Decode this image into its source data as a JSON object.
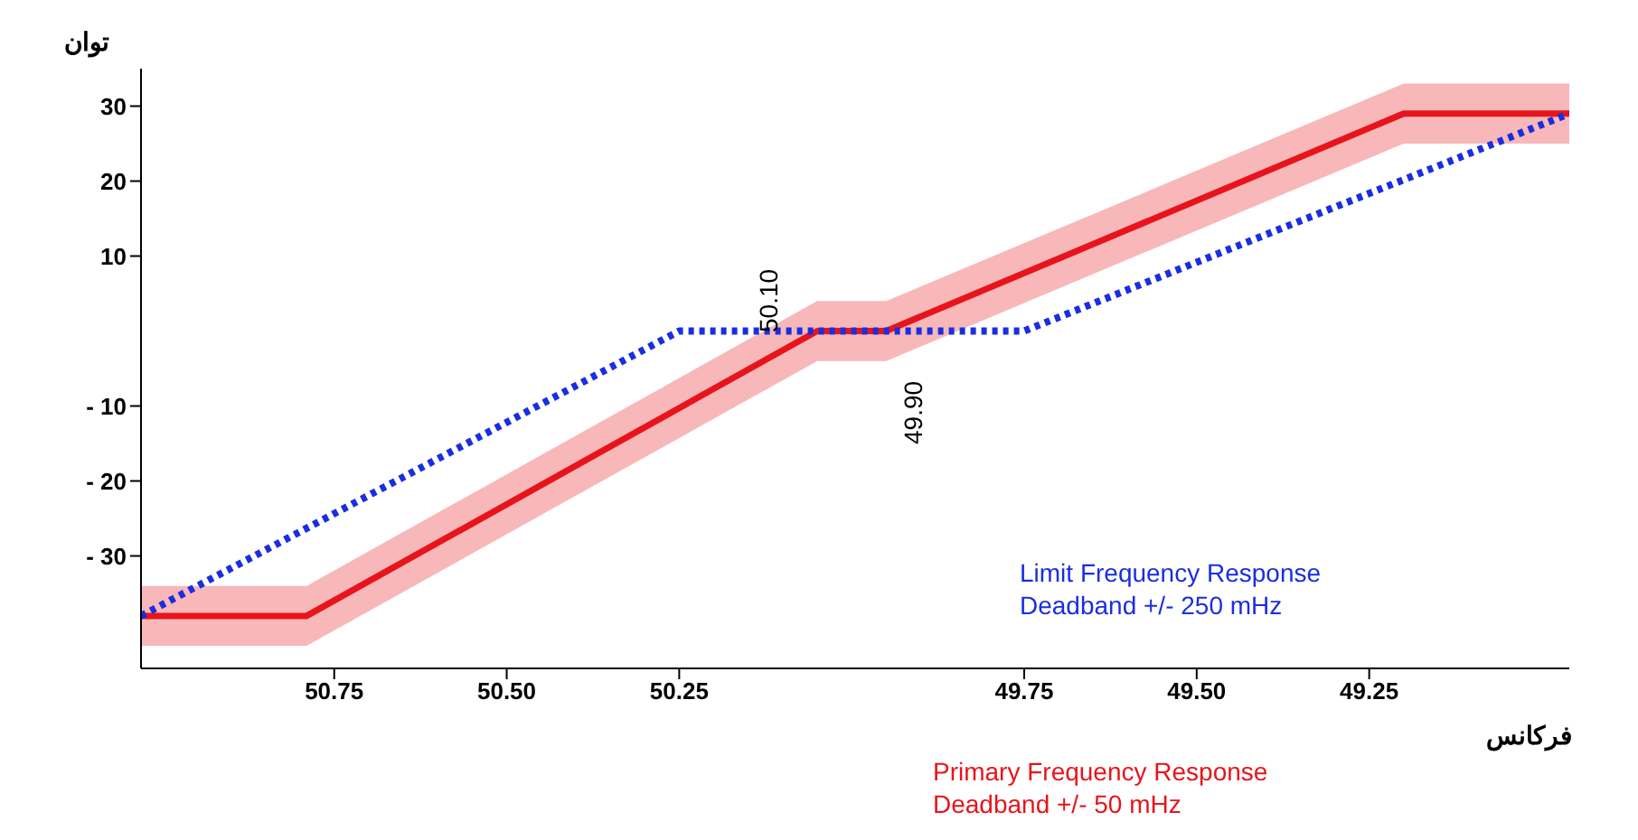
{
  "chart_data": {
    "type": "line",
    "xlabel": "فرکانس",
    "ylabel": "توان",
    "xlim": [
      51.03,
      48.96
    ],
    "xticks": [
      50.75,
      {
        "value": 50.5,
        "label": "50.50"
      },
      50.25,
      49.75,
      {
        "value": 49.5,
        "label": "49.50"
      },
      49.25
    ],
    "ylim": [
      -45,
      35
    ],
    "yticks": [
      {
        "value": -30,
        "label": "- 30"
      },
      {
        "value": -20,
        "label": "- 20"
      },
      {
        "value": -10,
        "label": "- 10"
      },
      10,
      20,
      30
    ],
    "series": [
      {
        "color": "#e8141b",
        "line_style": "solid",
        "x": [
          51.03,
          50.79,
          50.05,
          49.95,
          49.2,
          48.96
        ],
        "values": [
          -38,
          -38,
          0,
          0,
          29,
          29
        ],
        "lower": [
          -42,
          -42,
          -4,
          -4,
          25,
          25
        ],
        "upper": [
          -34,
          -34,
          4,
          4,
          33,
          33
        ]
      },
      {
        "color": "#1a2ee0",
        "line_style": "dotted",
        "x": [
          51.03,
          50.25,
          49.75,
          48.96
        ],
        "values": [
          -38,
          0,
          0,
          29
        ]
      }
    ],
    "annotations": [
      "50.10",
      "49.90",
      "Limit Frequency Response\nDeadband +/- 250 mHz",
      "Primary Frequency Response\nDeadband +/- 50 mHz"
    ],
    "marker": "none"
  }
}
